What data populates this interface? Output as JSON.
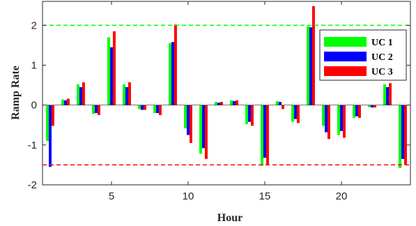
{
  "chart_data": {
    "type": "bar",
    "xlabel": "Hour",
    "ylabel": "Ramp Rate",
    "xlim": [
      0.5,
      24.5
    ],
    "ylim": [
      -2,
      2.6
    ],
    "xticks": [
      5,
      10,
      15,
      20
    ],
    "yticks": [
      -2,
      -1,
      0,
      1,
      2
    ],
    "legend_position": "top-right",
    "reference_lines": [
      {
        "y": 2.0,
        "color": "#00ff00",
        "style": "dashed"
      },
      {
        "y": -1.5,
        "color": "#ff0000",
        "style": "dashed"
      }
    ],
    "categories": [
      1,
      2,
      3,
      4,
      5,
      6,
      7,
      8,
      9,
      10,
      11,
      12,
      13,
      14,
      15,
      16,
      17,
      18,
      19,
      20,
      21,
      22,
      23,
      24
    ],
    "series": [
      {
        "name": "UC 1",
        "color": "#00ff00",
        "values": [
          -0.9,
          0.14,
          0.52,
          -0.22,
          1.7,
          0.52,
          -0.1,
          -0.2,
          1.55,
          -0.58,
          -1.22,
          0.08,
          0.12,
          -0.48,
          -1.52,
          0.1,
          -0.42,
          1.98,
          -0.52,
          -0.75,
          -0.32,
          -0.05,
          0.52,
          -1.58
        ]
      },
      {
        "name": "UC 2",
        "color": "#0000ff",
        "values": [
          -1.55,
          0.12,
          0.45,
          -0.2,
          1.45,
          0.45,
          -0.12,
          -0.2,
          1.58,
          -0.75,
          -1.08,
          0.06,
          0.1,
          -0.42,
          -1.32,
          0.08,
          -0.35,
          1.95,
          -0.68,
          -0.65,
          -0.28,
          -0.06,
          0.45,
          -1.35
        ]
      },
      {
        "name": "UC 3",
        "color": "#ff0000",
        "values": [
          -0.52,
          0.16,
          0.57,
          -0.25,
          1.85,
          0.57,
          -0.12,
          -0.25,
          2.02,
          -0.95,
          -1.35,
          0.08,
          0.12,
          -0.52,
          -1.5,
          -0.1,
          -0.45,
          2.48,
          -0.85,
          -0.82,
          -0.32,
          -0.06,
          0.55,
          -1.5
        ]
      }
    ]
  }
}
